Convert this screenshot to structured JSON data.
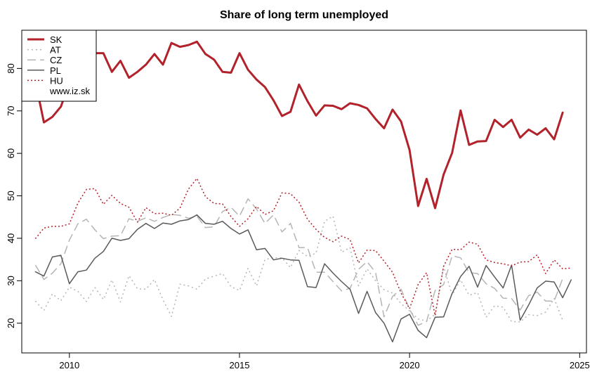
{
  "chart_data": {
    "type": "line",
    "title": "Share of long term unemployed",
    "xlabel": "",
    "ylabel": "",
    "xlim": [
      2008.6,
      2025.2
    ],
    "ylim": [
      13.0,
      89.0
    ],
    "x_ticks": [
      2010,
      2015,
      2020,
      2025
    ],
    "y_ticks": [
      20,
      30,
      40,
      50,
      60,
      70,
      80
    ],
    "x_start": 2009.0,
    "x_step": 0.25,
    "legend_position": "top-left",
    "legend_note": "www.iz.sk",
    "grid": false,
    "series": [
      {
        "name": "SK",
        "color": "#b2222a",
        "dash": "",
        "width": 3,
        "values": [
          77.0,
          67.3,
          68.6,
          71.0,
          76.7,
          81.7,
          84.5,
          83.6,
          83.6,
          79.2,
          81.8,
          77.8,
          79.2,
          80.9,
          83.4,
          80.9,
          86.0,
          85.1,
          85.5,
          86.3,
          83.4,
          82.1,
          79.2,
          79.0,
          83.6,
          79.7,
          77.4,
          75.6,
          72.5,
          68.8,
          69.8,
          76.2,
          72.3,
          68.9,
          71.3,
          71.2,
          70.4,
          71.8,
          71.4,
          70.6,
          68.1,
          65.9,
          70.3,
          67.5,
          60.8,
          47.6,
          54.0,
          47.1,
          55.0,
          60.1,
          70.1,
          62.0,
          62.8,
          62.9,
          67.9,
          66.2,
          67.9,
          63.7,
          65.6,
          64.4,
          65.9,
          63.3,
          69.6
        ]
      },
      {
        "name": "AT",
        "color": "#b5b5b5",
        "dash": "2,4",
        "width": 1.5,
        "values": [
          25.2,
          23.0,
          26.9,
          25.3,
          28.5,
          27.5,
          25.1,
          28.4,
          25.6,
          30.2,
          25.0,
          31.2,
          28.1,
          28.0,
          30.3,
          25.5,
          21.6,
          29.2,
          28.8,
          28.0,
          30.4,
          31.1,
          31.7,
          28.6,
          27.7,
          32.9,
          28.8,
          35.0,
          35.4,
          35.4,
          33.1,
          37.1,
          35.7,
          36.5,
          44.0,
          45.2,
          36.7,
          37.8,
          28.8,
          32.8,
          30.0,
          27.9,
          27.1,
          24.6,
          22.9,
          21.0,
          20.5,
          22.1,
          33.4,
          26.6,
          30.2,
          26.6,
          27.2,
          21.4,
          24.1,
          23.8,
          20.4,
          20.3,
          22.0,
          21.8,
          22.6,
          25.8,
          20.7
        ]
      },
      {
        "name": "CZ",
        "color": "#b5b5b5",
        "dash": "12,6",
        "width": 1.5,
        "values": [
          33.7,
          30.3,
          31.8,
          34.0,
          39.6,
          43.4,
          44.5,
          42.0,
          39.9,
          40.5,
          40.6,
          44.6,
          44.0,
          44.8,
          44.0,
          44.9,
          45.6,
          45.4,
          44.7,
          45.2,
          42.5,
          42.7,
          46.3,
          47.3,
          45.2,
          49.3,
          46.9,
          43.5,
          45.5,
          41.5,
          43.5,
          37.8,
          37.8,
          32.0,
          32.0,
          29.8,
          27.6,
          28.2,
          32.7,
          34.5,
          32.0,
          21.5,
          26.3,
          28.0,
          23.3,
          19.5,
          20.4,
          27.7,
          29.1,
          35.9,
          35.4,
          31.9,
          31.7,
          29.3,
          28.2,
          25.9,
          25.8,
          23.1,
          26.5,
          27.3,
          25.2,
          25.2,
          30.5
        ]
      },
      {
        "name": "PL",
        "color": "#5a5a5a",
        "dash": "",
        "width": 1.5,
        "values": [
          32.1,
          31.1,
          35.6,
          36.0,
          29.3,
          32.1,
          32.5,
          35.3,
          36.9,
          40.0,
          39.5,
          39.9,
          42.1,
          43.5,
          42.3,
          43.6,
          43.3,
          44.1,
          44.4,
          45.5,
          43.5,
          43.3,
          44.0,
          42.3,
          41.0,
          42.0,
          37.3,
          37.6,
          34.9,
          35.3,
          34.9,
          34.8,
          28.6,
          28.4,
          34.0,
          31.8,
          29.8,
          28.0,
          22.3,
          27.5,
          22.5,
          20.0,
          15.6,
          21.0,
          22.1,
          18.3,
          16.6,
          21.4,
          21.5,
          27.0,
          31.0,
          33.4,
          28.5,
          33.6,
          30.9,
          28.3,
          33.7,
          20.7,
          24.3,
          28.3,
          29.9,
          29.7,
          26.0,
          30.2
        ]
      },
      {
        "name": "HU",
        "color": "#b2222a",
        "dash": "2,3",
        "width": 1.5,
        "values": [
          39.9,
          42.4,
          42.8,
          42.8,
          43.4,
          48.3,
          51.5,
          51.7,
          48.0,
          50.1,
          48.2,
          47.3,
          43.8,
          47.2,
          45.8,
          45.9,
          45.4,
          47.1,
          51.6,
          54.1,
          49.8,
          48.2,
          48.1,
          45.1,
          42.8,
          44.6,
          47.5,
          45.6,
          46.5,
          50.7,
          50.5,
          48.5,
          44.5,
          42.1,
          40.2,
          39.2,
          40.5,
          39.7,
          34.2,
          37.2,
          37.1,
          34.6,
          32.0,
          27.1,
          23.4,
          29.1,
          31.9,
          21.8,
          33.4,
          37.4,
          37.3,
          39.1,
          38.6,
          34.9,
          34.3,
          34.0,
          33.5,
          34.4,
          34.5,
          36.1,
          31.7,
          34.9,
          32.8,
          33.0
        ]
      }
    ]
  }
}
